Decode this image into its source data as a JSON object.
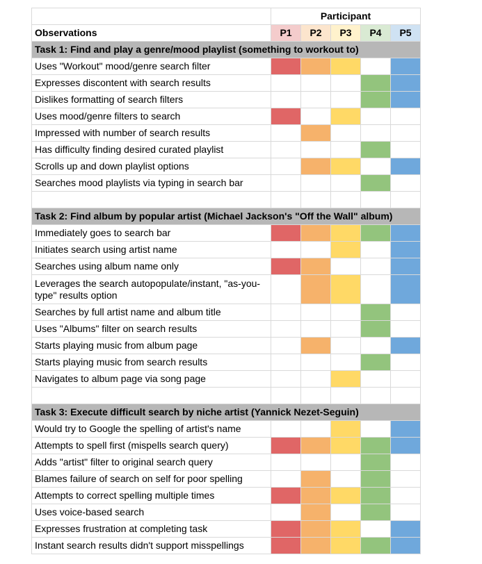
{
  "participant_label": "Participant",
  "observations_label": "Observations",
  "participants": [
    "P1",
    "P2",
    "P3",
    "P4",
    "P5"
  ],
  "colors": {
    "P1": "#e06666",
    "P2": "#f6b26b",
    "P3": "#ffd966",
    "P4": "#93c47d",
    "P5": "#6fa8dc",
    "P1_light": "#f4cccc",
    "P2_light": "#fce5cd",
    "P3_light": "#fff2cc",
    "P4_light": "#d9ead3",
    "P5_light": "#cfe2f3",
    "task_header": "#b7b7b7"
  },
  "tasks": [
    {
      "title": "Task 1: Find and play a genre/mood playlist (something to workout to)",
      "rows": [
        {
          "label": "Uses \"Workout\" mood/genre search filter",
          "marks": [
            1,
            1,
            1,
            0,
            1
          ]
        },
        {
          "label": "Expresses discontent with search results",
          "marks": [
            0,
            0,
            0,
            1,
            1
          ]
        },
        {
          "label": "Dislikes formatting of search filters",
          "marks": [
            0,
            0,
            0,
            1,
            1
          ]
        },
        {
          "label": "Uses mood/genre filters to search",
          "marks": [
            1,
            0,
            1,
            0,
            0
          ]
        },
        {
          "label": "Impressed with number of search results",
          "marks": [
            0,
            1,
            0,
            0,
            0
          ]
        },
        {
          "label": "Has difficulty finding desired curated playlist",
          "marks": [
            0,
            0,
            0,
            1,
            0
          ]
        },
        {
          "label": "Scrolls up and down playlist options",
          "marks": [
            0,
            1,
            1,
            0,
            1
          ]
        },
        {
          "label": "Searches mood playlists via typing in search bar",
          "marks": [
            0,
            0,
            0,
            1,
            0
          ]
        }
      ]
    },
    {
      "title": "Task 2: Find album by popular artist (Michael Jackson's \"Off the Wall\" album)",
      "rows": [
        {
          "label": "Immediately goes to search bar",
          "marks": [
            1,
            1,
            1,
            1,
            1
          ]
        },
        {
          "label": "Initiates search using artist name",
          "marks": [
            0,
            0,
            1,
            0,
            1
          ]
        },
        {
          "label": "Searches using album name only",
          "marks": [
            1,
            1,
            0,
            0,
            1
          ]
        },
        {
          "label": "Leverages the search autopopulate/instant, \"as-you-type\" results option",
          "marks": [
            0,
            1,
            1,
            0,
            1
          ],
          "tall": true
        },
        {
          "label": "Searches by full artist name and album title",
          "marks": [
            0,
            0,
            0,
            1,
            0
          ]
        },
        {
          "label": "Uses \"Albums\" filter on search results",
          "marks": [
            0,
            0,
            0,
            1,
            0
          ]
        },
        {
          "label": "Starts playing music from album page",
          "marks": [
            0,
            1,
            0,
            0,
            1
          ]
        },
        {
          "label": "Starts playing music from search results",
          "marks": [
            0,
            0,
            0,
            1,
            0
          ]
        },
        {
          "label": "Navigates to album page via song page",
          "marks": [
            0,
            0,
            1,
            0,
            0
          ]
        }
      ]
    },
    {
      "title": "Task 3: Execute difficult search by niche artist (Yannick Nezet-Seguin)",
      "rows": [
        {
          "label": "Would try to Google the spelling of artist's name",
          "marks": [
            0,
            0,
            1,
            0,
            1
          ]
        },
        {
          "label": "Attempts to spell first (mispells search query)",
          "marks": [
            1,
            1,
            1,
            1,
            1
          ]
        },
        {
          "label": "Adds \"artist\" filter to original search query",
          "marks": [
            0,
            0,
            0,
            1,
            0
          ]
        },
        {
          "label": "Blames failure of search on self for poor spelling",
          "marks": [
            0,
            1,
            0,
            1,
            0
          ]
        },
        {
          "label": "Attempts to correct spelling multiple times",
          "marks": [
            1,
            1,
            1,
            1,
            0
          ]
        },
        {
          "label": "Uses voice-based search",
          "marks": [
            0,
            1,
            0,
            1,
            0
          ]
        },
        {
          "label": "Expresses frustration at completing task",
          "marks": [
            1,
            1,
            1,
            0,
            1
          ]
        },
        {
          "label": "Instant search results didn't support misspellings",
          "marks": [
            1,
            1,
            1,
            1,
            1
          ]
        }
      ]
    }
  ]
}
